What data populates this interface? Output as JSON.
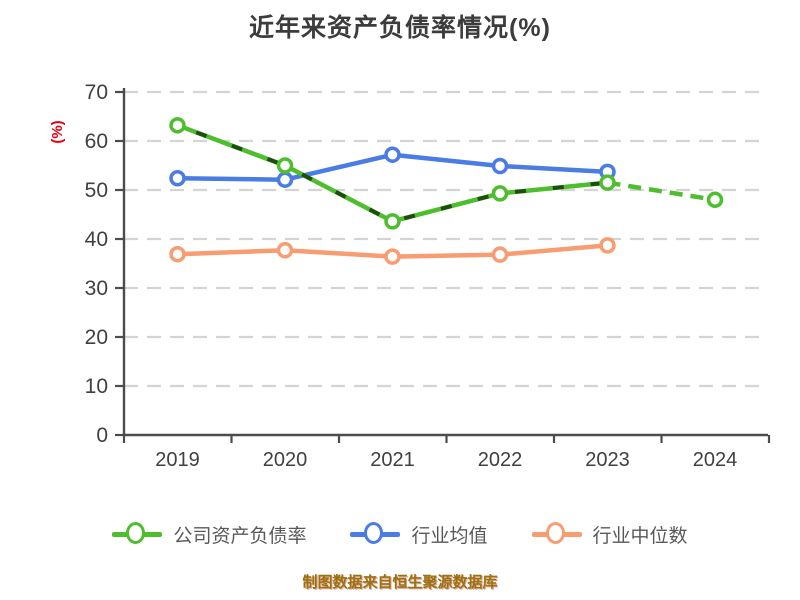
{
  "title": "近年来资产负债率情况(%)",
  "y_axis_label": "(%)",
  "source_note": "制图数据来自恒生聚源数据库",
  "colors": {
    "background": "#ffffff",
    "title": "#3c3c3c",
    "axis": "#4c4c4c",
    "grid": "#d4d4d4",
    "tick_label": "#404040",
    "y_unit_label": "#e60012",
    "legend_text": "#595959",
    "source_note": "#9b7210",
    "company_line": "#4fbe2e",
    "company_dash_overlay": "#1f4d10",
    "industry_mean_line": "#4a7ce4",
    "industry_median_line": "#f89c72",
    "marker_fill": "#ffffff"
  },
  "chart_data": {
    "type": "line",
    "title": "近年来资产负债率情况(%)",
    "xlabel": "",
    "ylabel": "(%)",
    "categories": [
      2019,
      2020,
      2021,
      2022,
      2023,
      2024
    ],
    "ylim": [
      0,
      70
    ],
    "y_ticks": [
      0,
      10,
      20,
      30,
      40,
      50,
      60,
      70
    ],
    "grid": "horizontal-dashed",
    "legend_position": "bottom",
    "series": [
      {
        "name": "公司资产负债率",
        "color": "#4fbe2e",
        "overlay_dash_color": "#1f4d10",
        "style": "solid-with-dark-dashes",
        "last_segment_dashed": true,
        "values": [
          63.2,
          55.0,
          43.6,
          49.3,
          51.5,
          48.0
        ]
      },
      {
        "name": "行业均值",
        "color": "#4a7ce4",
        "style": "solid",
        "last_segment_dashed": false,
        "values": [
          52.4,
          52.1,
          57.2,
          54.9,
          53.7,
          null
        ]
      },
      {
        "name": "行业中位数",
        "color": "#f89c72",
        "style": "solid",
        "last_segment_dashed": false,
        "values": [
          36.9,
          37.7,
          36.4,
          36.8,
          38.7,
          null
        ]
      }
    ]
  }
}
